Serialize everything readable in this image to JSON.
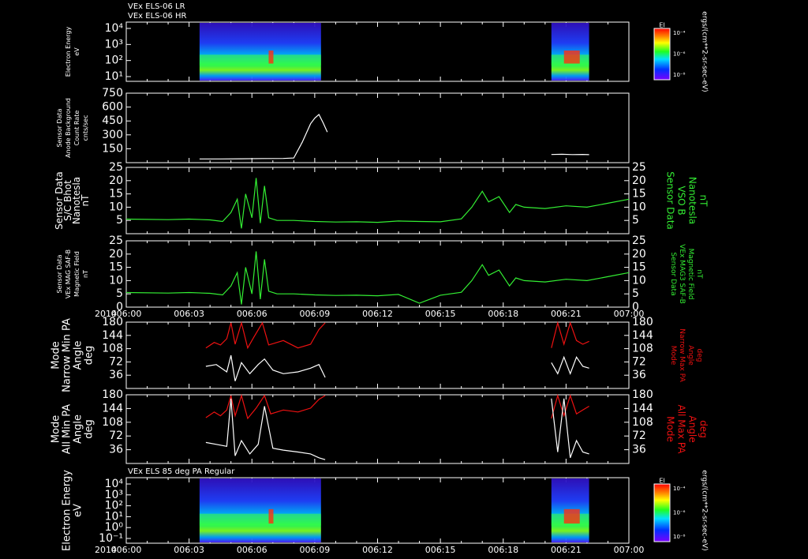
{
  "colors": {
    "white": "#ffffff",
    "green": "#33ee33",
    "red": "#ee1111",
    "black": "#000000"
  },
  "chart_data": [
    {
      "type": "heatmap",
      "title_lines": [
        "VEx ELS-06 LR",
        "VEx ELS-06 HR"
      ],
      "ylabel_lines": [
        "Electron Energy",
        "eV"
      ],
      "y_ticks": [
        "10⁴",
        "10³",
        "10²",
        "10¹"
      ],
      "colorbar": {
        "label": "El",
        "ticks": [
          "10⁻⁴",
          "10⁻⁶",
          "10⁻⁸"
        ],
        "units": "ergs/(cm**2-sr-sec-eV)"
      },
      "data_intervals_hhmm": [
        [
          "06:03.5",
          "06:09.3"
        ],
        [
          "06:20.3",
          "06:22.1"
        ]
      ]
    },
    {
      "type": "line",
      "ylabel_lines": [
        "Sensor Data",
        "Anode Background",
        "Count Rate",
        "cnts/sec"
      ],
      "y_ticks": [
        750,
        600,
        450,
        300,
        150
      ],
      "ylim": [
        0,
        750
      ],
      "series": [
        {
          "name": "left",
          "color": "#ffffff",
          "x": [
            3.5,
            4.5,
            5.5,
            6.5,
            7.5,
            8.0,
            8.4,
            8.8,
            9.0,
            9.2,
            9.4,
            9.6
          ],
          "y": [
            40,
            40,
            42,
            44,
            45,
            50,
            220,
            420,
            480,
            520,
            430,
            330
          ]
        },
        {
          "name": "right",
          "color": "#ffffff",
          "x": [
            20.3,
            20.8,
            21.3,
            21.8,
            22.1
          ],
          "y": [
            88,
            90,
            87,
            89,
            86
          ]
        }
      ]
    },
    {
      "type": "line",
      "ylabel_lines": [
        "Sensor Data",
        "S/C Bhot",
        "Nanotesla",
        "nT"
      ],
      "right_label_lines": [
        "Sensor Data",
        "VSO B",
        "Nanotesla",
        "nT"
      ],
      "y_ticks": [
        25,
        20,
        15,
        10,
        5
      ],
      "right_ticks": [
        25,
        20,
        15,
        10,
        5
      ],
      "ylim": [
        0,
        25
      ],
      "series": [
        {
          "name": "B",
          "color": "#33ee33",
          "x": [
            0,
            2,
            3,
            4,
            4.6,
            5.0,
            5.3,
            5.5,
            5.7,
            6.0,
            6.2,
            6.4,
            6.6,
            6.8,
            7.2,
            8,
            9,
            10,
            11,
            12,
            13,
            14,
            15,
            16,
            16.5,
            17,
            17.3,
            17.8,
            18.3,
            18.6,
            19,
            20,
            21,
            22,
            23,
            24
          ],
          "y": [
            5.5,
            5.3,
            5.5,
            5.2,
            4.6,
            8,
            13,
            2,
            15,
            6,
            21,
            4,
            18,
            6,
            5,
            5,
            4.6,
            4.4,
            4.5,
            4.3,
            4.8,
            4.6,
            4.5,
            5.6,
            10,
            16,
            12,
            14,
            8,
            11,
            10,
            9.5,
            10.5,
            10,
            11.5,
            13
          ]
        }
      ]
    },
    {
      "type": "line",
      "ylabel_lines": [
        "Sensor Data",
        "VEx MAG SAF-B",
        "Magnetic Field",
        "nT"
      ],
      "right_label_lines": [
        "Sensor Data",
        "VEx MAG3 SAF-B",
        "Magnetic Field",
        "nT"
      ],
      "y_ticks": [
        25,
        20,
        15,
        10,
        5,
        0
      ],
      "right_ticks": [
        25,
        20,
        15,
        10,
        5,
        0
      ],
      "ylim": [
        0,
        25
      ],
      "series": [
        {
          "name": "B",
          "color": "#33ee33",
          "x": [
            0,
            2,
            3,
            4,
            4.6,
            5.0,
            5.3,
            5.5,
            5.7,
            6.0,
            6.2,
            6.4,
            6.6,
            6.8,
            7.2,
            8,
            9,
            10,
            11,
            12,
            13,
            14,
            15,
            16,
            16.5,
            17,
            17.3,
            17.8,
            18.3,
            18.6,
            19,
            20,
            21,
            22,
            23,
            24
          ],
          "y": [
            5.5,
            5.3,
            5.5,
            5.2,
            4.6,
            8,
            13,
            1,
            15,
            5,
            21,
            3,
            18,
            6,
            5,
            5,
            4.6,
            4.4,
            4.5,
            4.3,
            4.8,
            1.5,
            4.5,
            5.6,
            10,
            16,
            12,
            14,
            8,
            11,
            10,
            9.5,
            10.5,
            10,
            11.5,
            13
          ]
        }
      ]
    },
    {
      "type": "line",
      "ylabel_lines": [
        "Mode",
        "Narrow Min PA",
        "Angle",
        "deg"
      ],
      "right_label_lines": [
        "Mode",
        "Narrow Max PA",
        "Angle",
        "deg"
      ],
      "y_ticks": [
        180,
        144,
        108,
        72,
        36
      ],
      "right_ticks": [
        180,
        144,
        108,
        72,
        36
      ],
      "ylim": [
        0,
        180
      ],
      "series": [
        {
          "name": "max",
          "color": "#ee1111",
          "segments": [
            [
              [
                3.8,
                110
              ],
              [
                4.2,
                125
              ],
              [
                4.5,
                118
              ],
              [
                4.8,
                135
              ],
              [
                5.0,
                178
              ],
              [
                5.2,
                120
              ],
              [
                5.5,
                178
              ],
              [
                5.8,
                110
              ],
              [
                6.1,
                140
              ],
              [
                6.5,
                178
              ],
              [
                6.8,
                118
              ],
              [
                7.5,
                130
              ],
              [
                8.2,
                110
              ],
              [
                8.8,
                120
              ],
              [
                9.2,
                160
              ],
              [
                9.5,
                178
              ]
            ],
            [
              [
                20.3,
                110
              ],
              [
                20.6,
                178
              ],
              [
                20.9,
                120
              ],
              [
                21.2,
                178
              ],
              [
                21.5,
                130
              ],
              [
                21.8,
                120
              ],
              [
                22.1,
                128
              ]
            ]
          ]
        },
        {
          "name": "min",
          "color": "#ffffff",
          "segments": [
            [
              [
                3.8,
                60
              ],
              [
                4.3,
                65
              ],
              [
                4.8,
                45
              ],
              [
                5.0,
                90
              ],
              [
                5.2,
                20
              ],
              [
                5.5,
                70
              ],
              [
                5.9,
                40
              ],
              [
                6.3,
                65
              ],
              [
                6.6,
                80
              ],
              [
                7.0,
                50
              ],
              [
                7.5,
                40
              ],
              [
                8.2,
                45
              ],
              [
                8.8,
                55
              ],
              [
                9.2,
                65
              ],
              [
                9.5,
                30
              ]
            ],
            [
              [
                20.3,
                70
              ],
              [
                20.6,
                40
              ],
              [
                20.9,
                85
              ],
              [
                21.2,
                40
              ],
              [
                21.5,
                85
              ],
              [
                21.8,
                60
              ],
              [
                22.1,
                55
              ]
            ]
          ]
        }
      ]
    },
    {
      "type": "line",
      "ylabel_lines": [
        "Mode",
        "All Min PA",
        "Angle",
        "deg"
      ],
      "right_label_lines": [
        "Mode",
        "All Max PA",
        "Angle",
        "deg"
      ],
      "y_ticks": [
        180,
        144,
        108,
        72,
        36
      ],
      "right_ticks": [
        180,
        144,
        108,
        72,
        36
      ],
      "ylim": [
        0,
        180
      ],
      "series": [
        {
          "name": "max",
          "color": "#ee1111",
          "segments": [
            [
              [
                3.8,
                120
              ],
              [
                4.2,
                135
              ],
              [
                4.5,
                125
              ],
              [
                4.8,
                140
              ],
              [
                5.0,
                178
              ],
              [
                5.2,
                125
              ],
              [
                5.5,
                178
              ],
              [
                5.8,
                118
              ],
              [
                6.2,
                145
              ],
              [
                6.6,
                178
              ],
              [
                6.9,
                130
              ],
              [
                7.5,
                140
              ],
              [
                8.2,
                135
              ],
              [
                8.8,
                145
              ],
              [
                9.2,
                168
              ],
              [
                9.5,
                178
              ]
            ],
            [
              [
                20.3,
                118
              ],
              [
                20.6,
                178
              ],
              [
                20.9,
                125
              ],
              [
                21.2,
                178
              ],
              [
                21.5,
                130
              ],
              [
                21.8,
                140
              ],
              [
                22.1,
                150
              ]
            ]
          ]
        },
        {
          "name": "min",
          "color": "#ffffff",
          "segments": [
            [
              [
                3.8,
                55
              ],
              [
                4.3,
                50
              ],
              [
                4.8,
                45
              ],
              [
                5.0,
                170
              ],
              [
                5.2,
                20
              ],
              [
                5.5,
                60
              ],
              [
                5.9,
                25
              ],
              [
                6.3,
                50
              ],
              [
                6.6,
                150
              ],
              [
                7.0,
                40
              ],
              [
                7.5,
                35
              ],
              [
                8.2,
                30
              ],
              [
                8.8,
                25
              ],
              [
                9.2,
                15
              ],
              [
                9.5,
                10
              ]
            ],
            [
              [
                20.3,
                170
              ],
              [
                20.6,
                30
              ],
              [
                20.9,
                170
              ],
              [
                21.2,
                15
              ],
              [
                21.5,
                60
              ],
              [
                21.8,
                30
              ],
              [
                22.1,
                25
              ]
            ]
          ]
        }
      ]
    },
    {
      "type": "heatmap",
      "title_lines": [
        "VEx ELS 85 deg PA Regular"
      ],
      "ylabel_lines": [
        "Electron Energy",
        "eV"
      ],
      "y_ticks": [
        "10⁴",
        "10³",
        "10²",
        "10¹",
        "10⁰",
        "10⁻¹"
      ],
      "colorbar": {
        "label": "El",
        "ticks": [
          "10⁻⁴",
          "10⁻⁶",
          "10⁻⁸"
        ],
        "units": "ergs/(cm**2-sr-sec-eV)"
      },
      "data_intervals_hhmm": [
        [
          "06:03.5",
          "06:09.3"
        ],
        [
          "06:20.3",
          "06:22.1"
        ]
      ]
    }
  ],
  "x_axis": {
    "year": "2014",
    "ticks": [
      "006:00",
      "006:03",
      "006:06",
      "006:09",
      "006:12",
      "006:15",
      "006:18",
      "006:21",
      "007:00"
    ]
  }
}
